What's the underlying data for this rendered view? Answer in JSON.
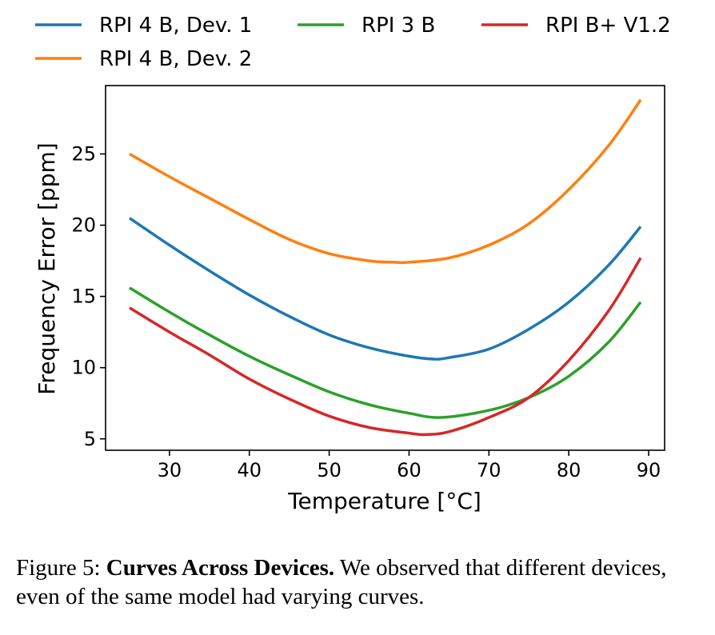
{
  "chart_data": {
    "type": "line",
    "xlabel": "Temperature [°C]",
    "ylabel": "Frequency Error [ppm]",
    "xlim": [
      22,
      92
    ],
    "ylim": [
      4.2,
      29.8
    ],
    "xticks": [
      30,
      40,
      50,
      60,
      70,
      80,
      90
    ],
    "yticks": [
      5,
      10,
      15,
      20,
      25
    ],
    "grid": false,
    "legend_position": "top",
    "series": [
      {
        "name": "RPI 4 B, Dev. 1",
        "color": "#1f77b4",
        "x": [
          25,
          30,
          35,
          40,
          45,
          50,
          55,
          60,
          63,
          65,
          70,
          75,
          80,
          85,
          89
        ],
        "y": [
          20.5,
          18.6,
          16.8,
          15.1,
          13.6,
          12.3,
          11.4,
          10.8,
          10.6,
          10.7,
          11.3,
          12.7,
          14.6,
          17.2,
          19.9
        ]
      },
      {
        "name": "RPI 4 B, Dev. 2",
        "color": "#ff7f0e",
        "x": [
          25,
          30,
          35,
          40,
          45,
          50,
          55,
          58,
          60,
          65,
          70,
          75,
          80,
          85,
          89
        ],
        "y": [
          25.0,
          23.4,
          21.9,
          20.4,
          19.0,
          18.0,
          17.5,
          17.4,
          17.4,
          17.7,
          18.6,
          20.1,
          22.5,
          25.6,
          28.8
        ]
      },
      {
        "name": "RPI 3 B",
        "color": "#2ca02c",
        "x": [
          25,
          30,
          35,
          40,
          45,
          50,
          55,
          60,
          64,
          70,
          75,
          80,
          85,
          89
        ],
        "y": [
          15.6,
          13.9,
          12.3,
          10.8,
          9.5,
          8.3,
          7.4,
          6.8,
          6.5,
          7.0,
          7.9,
          9.4,
          11.8,
          14.6
        ]
      },
      {
        "name": "RPI B+ V1.2",
        "color": "#d62728",
        "x": [
          25,
          30,
          35,
          40,
          45,
          50,
          55,
          60,
          62,
          65,
          70,
          75,
          80,
          85,
          89
        ],
        "y": [
          14.2,
          12.5,
          10.9,
          9.2,
          7.8,
          6.6,
          5.8,
          5.4,
          5.3,
          5.5,
          6.5,
          7.9,
          10.5,
          14.0,
          17.7
        ]
      }
    ]
  },
  "caption": {
    "prefix": "Figure 5: ",
    "bold": "Curves Across Devices.",
    "text": " We observed that different devices, even of the same model had varying curves."
  }
}
